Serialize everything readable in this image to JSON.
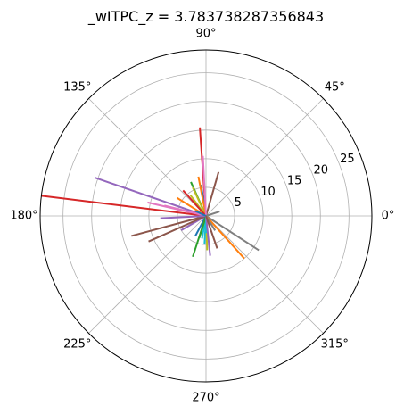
{
  "chart_data": {
    "type": "polar",
    "title": "_wITPC_z = 3.783738287356843",
    "angle_ticks": [
      "0°",
      "45°",
      "90°",
      "135°",
      "180°",
      "225°",
      "270°",
      "315°"
    ],
    "radial_ticks": [
      "5",
      "10",
      "15",
      "20",
      "25"
    ],
    "radial_tick_values": [
      5,
      10,
      15,
      20,
      25
    ],
    "radial_label_angle_deg": 22.5,
    "rmax": 29,
    "grid": true,
    "palette": [
      "#1f77b4",
      "#ff7f0e",
      "#2ca02c",
      "#d62728",
      "#9467bd",
      "#8c564b",
      "#e377c2",
      "#7f7f7f",
      "#bcbd22",
      "#17becf"
    ],
    "series": [
      {
        "angle_deg": 0,
        "r": 0,
        "color": "#1f77b4"
      },
      {
        "angle_deg": 148,
        "r": 6,
        "color": "#ff7f0e"
      },
      {
        "angle_deg": 114,
        "r": 6.5,
        "color": "#2ca02c"
      },
      {
        "angle_deg": 94,
        "r": 15.5,
        "color": "#d62728"
      },
      {
        "angle_deg": 161,
        "r": 20.5,
        "color": "#9467bd"
      },
      {
        "angle_deg": 195,
        "r": 13.5,
        "color": "#8c564b"
      },
      {
        "angle_deg": 167,
        "r": 10.5,
        "color": "#e377c2"
      },
      {
        "angle_deg": 327,
        "r": 11,
        "color": "#7f7f7f"
      },
      {
        "angle_deg": 127,
        "r": 4.5,
        "color": "#bcbd22"
      },
      {
        "angle_deg": 260,
        "r": 4,
        "color": "#17becf"
      },
      {
        "angle_deg": 99,
        "r": 5.5,
        "color": "#1f77b4"
      },
      {
        "angle_deg": 312,
        "r": 10,
        "color": "#ff7f0e"
      },
      {
        "angle_deg": 252,
        "r": 7.5,
        "color": "#2ca02c"
      },
      {
        "angle_deg": 173,
        "r": 29,
        "color": "#d62728"
      },
      {
        "angle_deg": 210,
        "r": 5,
        "color": "#9467bd"
      },
      {
        "angle_deg": 204,
        "r": 11,
        "color": "#8c564b"
      },
      {
        "angle_deg": 166,
        "r": 7.5,
        "color": "#e377c2"
      },
      {
        "angle_deg": 302,
        "r": 3,
        "color": "#7f7f7f"
      },
      {
        "angle_deg": 115,
        "r": 5.5,
        "color": "#bcbd22"
      },
      {
        "angle_deg": 267,
        "r": 5,
        "color": "#17becf"
      },
      {
        "angle_deg": 242,
        "r": 4,
        "color": "#1f77b4"
      },
      {
        "angle_deg": 101,
        "r": 7,
        "color": "#ff7f0e"
      },
      {
        "angle_deg": 253,
        "r": 4,
        "color": "#2ca02c"
      },
      {
        "angle_deg": 132,
        "r": 6,
        "color": "#d62728"
      },
      {
        "angle_deg": 183,
        "r": 8,
        "color": "#9467bd"
      },
      {
        "angle_deg": 74,
        "r": 8,
        "color": "#8c564b"
      },
      {
        "angle_deg": 93,
        "r": 10.5,
        "color": "#e377c2"
      },
      {
        "angle_deg": 18,
        "r": 2.5,
        "color": "#7f7f7f"
      },
      {
        "angle_deg": 272,
        "r": 6,
        "color": "#bcbd22"
      },
      {
        "angle_deg": 270,
        "r": 3,
        "color": "#17becf"
      },
      {
        "angle_deg": 155,
        "r": 2,
        "color": "#1f77b4"
      },
      {
        "angle_deg": 276,
        "r": 7,
        "color": "#9467bd"
      },
      {
        "angle_deg": 289,
        "r": 6,
        "color": "#8c564b"
      }
    ]
  }
}
